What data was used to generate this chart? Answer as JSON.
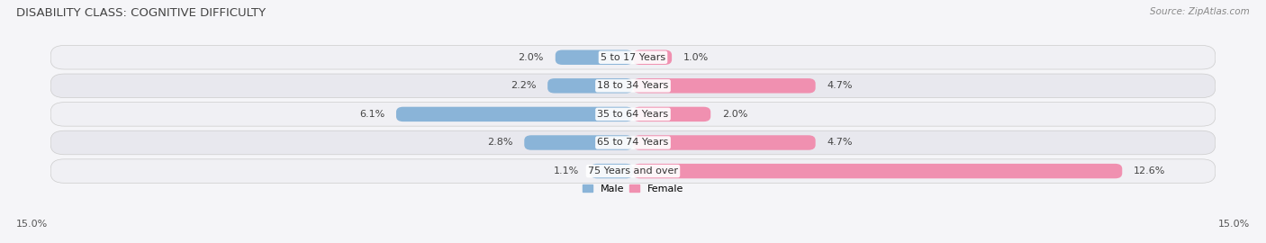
{
  "title": "DISABILITY CLASS: COGNITIVE DIFFICULTY",
  "source": "Source: ZipAtlas.com",
  "categories": [
    "5 to 17 Years",
    "18 to 34 Years",
    "35 to 64 Years",
    "65 to 74 Years",
    "75 Years and over"
  ],
  "male_values": [
    2.0,
    2.2,
    6.1,
    2.8,
    1.1
  ],
  "female_values": [
    1.0,
    4.7,
    2.0,
    4.7,
    12.6
  ],
  "male_color": "#8ab4d8",
  "female_color": "#f090b0",
  "row_bg_colors": [
    "#f0f0f4",
    "#e8e8ee",
    "#f0f0f4",
    "#e8e8ee",
    "#f0f0f4"
  ],
  "axis_limit": 15.0,
  "bar_height": 0.52,
  "title_fontsize": 9.5,
  "label_fontsize": 8,
  "tick_fontsize": 8,
  "category_fontsize": 8,
  "bg_color": "#f5f5f8",
  "title_color": "#444444",
  "label_color": "#444444",
  "source_color": "#888888"
}
